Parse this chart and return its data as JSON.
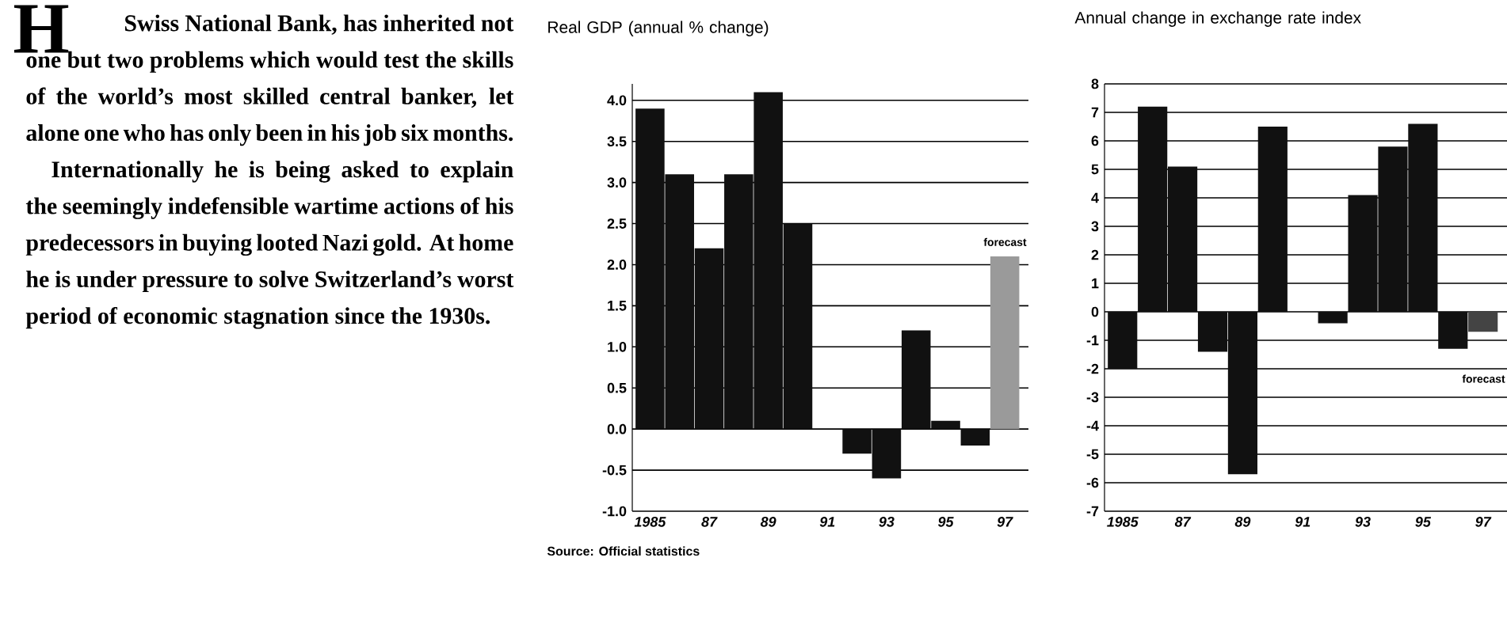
{
  "chart_data": [
    {
      "type": "other",
      "annotations": [
        "H",
        "Swiss National Bank, has inherited not one but two problems which would test the skills of the world’s most skilled central banker, let alone one who has only been in his job six months.",
        "Internationally he is being asked to explain the seemingly indefensible wartime actions of his predecessors in buying looted Nazi gold. At home he is under pressure to solve Switzerland’s worst period of economic stagnation since the 1930s."
      ]
    },
    {
      "type": "bar",
      "title": "Real GDP (annual % change)",
      "categories": [
        "1985",
        null,
        "87",
        null,
        "89",
        null,
        "91",
        null,
        "93",
        null,
        "95",
        null,
        "97"
      ],
      "values": [
        3.9,
        3.1,
        2.2,
        3.1,
        4.1,
        2.5,
        null,
        -0.3,
        -0.6,
        1.2,
        0.1,
        -0.2,
        2.1
      ],
      "colors": [
        "#111111",
        "#111111",
        "#111111",
        "#111111",
        "#111111",
        "#111111",
        "#111111",
        "#111111",
        "#111111",
        "#111111",
        "#111111",
        "#111111",
        "#9a9a9a"
      ],
      "ylim": [
        -1.0,
        4.2
      ],
      "yticks": [
        {
          "value": -1,
          "label": "-1.0"
        },
        -0.5,
        {
          "value": 0,
          "label": "0.0"
        },
        0.5,
        {
          "value": 1,
          "label": "1.0"
        },
        1.5,
        {
          "value": 2,
          "label": "2.0"
        },
        2.5,
        {
          "value": 3,
          "label": "3.0"
        },
        3.5,
        {
          "value": 4,
          "label": "4.0"
        }
      ],
      "grid": "y",
      "annotations": [
        "forecast",
        "Source: Official statistics"
      ]
    },
    {
      "type": "bar",
      "title": "Annual change in exchange rate index",
      "categories": [
        "1985",
        null,
        "87",
        null,
        "89",
        null,
        "91",
        null,
        "93",
        null,
        "95",
        null,
        "97"
      ],
      "values": [
        -2.0,
        7.2,
        5.1,
        -1.4,
        -5.7,
        6.5,
        null,
        -0.4,
        4.1,
        5.8,
        6.6,
        -1.3,
        -0.7
      ],
      "colors": [
        "#111111",
        "#111111",
        "#111111",
        "#111111",
        "#111111",
        "#111111",
        "#111111",
        "#111111",
        "#111111",
        "#111111",
        "#111111",
        "#111111",
        "#444444"
      ],
      "ylim": [
        -7,
        8
      ],
      "yticks": [
        -7,
        -6,
        -5,
        -4,
        -3,
        -2,
        -1,
        0,
        1,
        2,
        3,
        4,
        5,
        6,
        7,
        8
      ],
      "grid": "y",
      "annotations": [
        "forecast"
      ]
    }
  ]
}
